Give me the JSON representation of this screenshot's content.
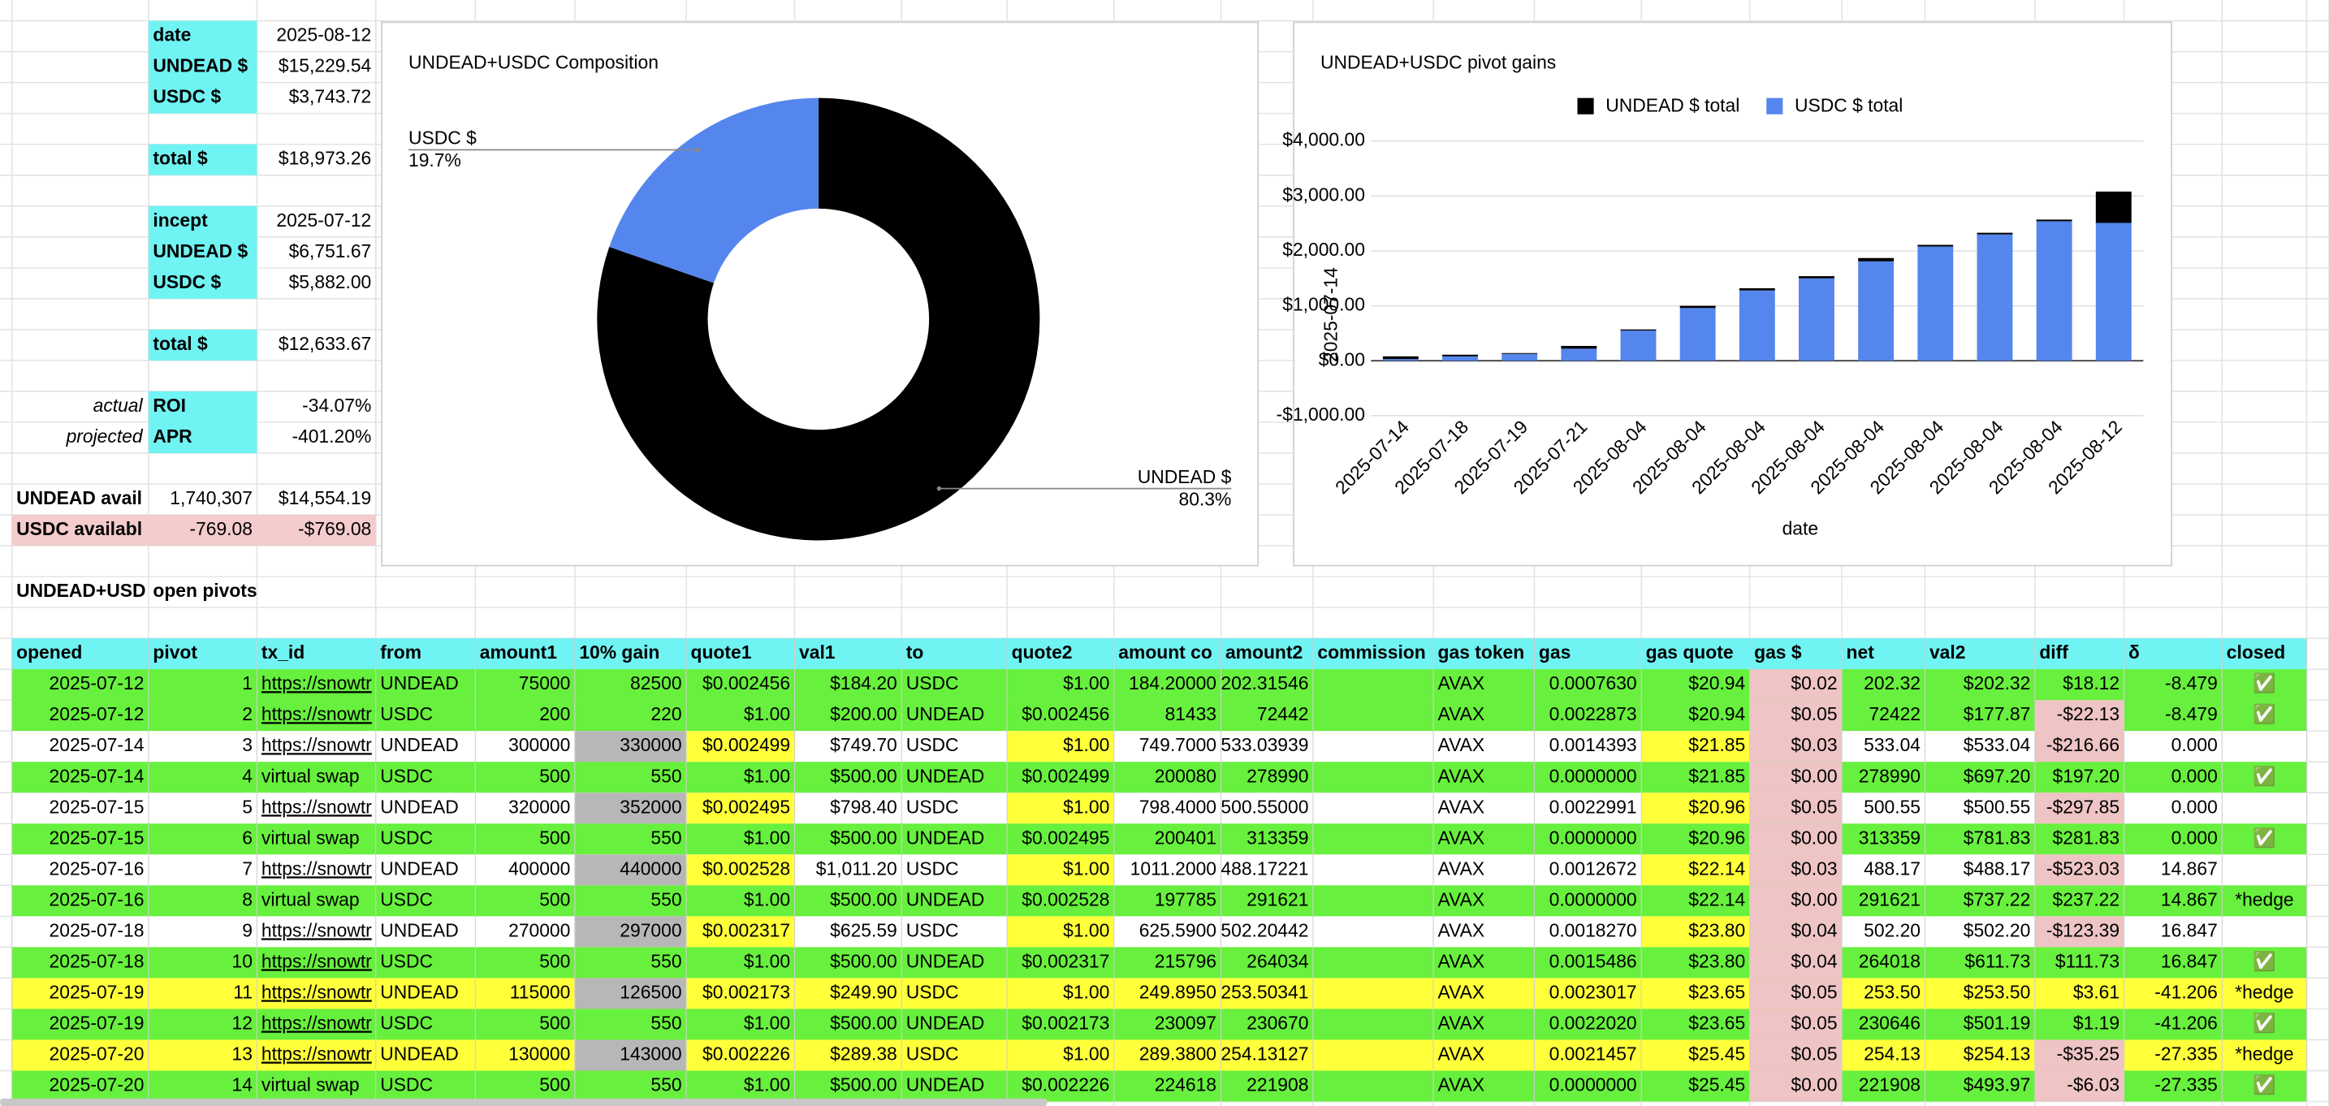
{
  "summary": [
    {
      "label": "date",
      "value": "2025-08-12"
    },
    {
      "label": "UNDEAD $",
      "value": "$15,229.54"
    },
    {
      "label": "USDC $",
      "value": "$3,743.72"
    },
    {
      "label": "total $",
      "value": "$18,973.26"
    },
    {
      "label": "incept",
      "value": "2025-07-12"
    },
    {
      "label": "UNDEAD $",
      "value": "$6,751.67"
    },
    {
      "label": "USDC $",
      "value": "$5,882.00"
    },
    {
      "label": "total $",
      "value": "$12,633.67"
    },
    {
      "note": "actual",
      "label": "ROI",
      "value": "-34.07%"
    },
    {
      "note": "projected",
      "label": "APR",
      "value": "-401.20%"
    },
    {
      "label": "UNDEAD avail",
      "amount": "1,740,307",
      "value": "$14,554.19"
    },
    {
      "label": "USDC availabl",
      "amount": "-769.08",
      "value": "-$769.08",
      "color": "#f4cccc"
    }
  ],
  "chart_data": [
    {
      "type": "pie",
      "title": "UNDEAD+USDC Composition",
      "categories": [
        "UNDEAD $",
        "USDC $"
      ],
      "values": [
        80.3,
        19.7
      ],
      "value_labels": [
        "80.3%",
        "19.7%"
      ],
      "colors": [
        "#000000",
        "#5586ee"
      ],
      "hole": 0.5
    },
    {
      "type": "stacked_bar",
      "title": "UNDEAD+USDC pivot gains",
      "x_label": "date",
      "y_label": "2025-07-14",
      "categories": [
        "2025-07-14",
        "2025-07-18",
        "2025-07-19",
        "2025-07-21",
        "2025-08-04",
        "2025-08-04",
        "2025-08-04",
        "2025-08-04",
        "2025-08-04",
        "2025-08-04",
        "2025-08-04",
        "2025-08-04",
        "2025-08-12"
      ],
      "series": [
        {
          "name": "UNDEAD $ total",
          "color": "#000000",
          "values": [
            50,
            30,
            15,
            50,
            20,
            40,
            40,
            40,
            60,
            30,
            30,
            30,
            570
          ]
        },
        {
          "name": "USDC $ total",
          "color": "#5586ee",
          "values": [
            30,
            80,
            125,
            220,
            550,
            960,
            1280,
            1500,
            1810,
            2080,
            2300,
            2540,
            2510
          ]
        }
      ],
      "ylim": [
        -1000,
        4000
      ],
      "yticks": [
        {
          "value": -1000,
          "label": "-$1,000.00"
        },
        {
          "value": 0,
          "label": "$0.00"
        },
        {
          "value": 1000,
          "label": "$1,000.00"
        },
        {
          "value": 2000,
          "label": "$2,000.00"
        },
        {
          "value": 3000,
          "label": "$3,000.00"
        },
        {
          "value": 4000,
          "label": "$4,000.00"
        }
      ],
      "grid": true,
      "legend": "top"
    }
  ],
  "pivots_title": [
    "UNDEAD+USD",
    "open pivots"
  ],
  "table": {
    "header": [
      "opened",
      "pivot",
      "tx_id",
      "from",
      "amount1",
      "10% gain",
      "quote1",
      "val1",
      "to",
      "quote2",
      "amount co",
      "amount2",
      "commission",
      "gas token",
      "gas",
      "gas quote",
      "gas $",
      "net",
      "val2",
      "diff",
      "δ",
      "closed"
    ],
    "rows": [
      [
        "2025-07-12",
        "1",
        "https://snowtr",
        "UNDEAD",
        "75000",
        "82500",
        "$0.002456",
        "$184.20",
        "USDC",
        "$1.00",
        "184.20000",
        "202.31546",
        null,
        "AVAX",
        "0.0007630",
        "$20.94",
        "$0.02",
        "202.32",
        "$202.32",
        "$18.12",
        "-8.479",
        "✅"
      ],
      [
        "2025-07-12",
        "2",
        "https://snowtr",
        "USDC",
        "200",
        "220",
        "$1.00",
        "$200.00",
        "UNDEAD",
        "$0.002456",
        "81433",
        "72442",
        null,
        "AVAX",
        "0.0022873",
        "$20.94",
        "$0.05",
        "72422",
        "$177.87",
        "-$22.13",
        "-8.479",
        "✅"
      ],
      [
        "2025-07-14",
        "3",
        "https://snowtr",
        "UNDEAD",
        "300000",
        "330000",
        "$0.002499",
        "$749.70",
        "USDC",
        "$1.00",
        "749.7000",
        "533.03939",
        null,
        "AVAX",
        "0.0014393",
        "$21.85",
        "$0.03",
        "533.04",
        "$533.04",
        "-$216.66",
        "0.000",
        null
      ],
      [
        "2025-07-14",
        "4",
        "virtual swap",
        "USDC",
        "500",
        "550",
        "$1.00",
        "$500.00",
        "UNDEAD",
        "$0.002499",
        "200080",
        "278990",
        null,
        "AVAX",
        "0.0000000",
        "$21.85",
        "$0.00",
        "278990",
        "$697.20",
        "$197.20",
        "0.000",
        "✅"
      ],
      [
        "2025-07-15",
        "5",
        "https://snowtr",
        "UNDEAD",
        "320000",
        "352000",
        "$0.002495",
        "$798.40",
        "USDC",
        "$1.00",
        "798.4000",
        "500.55000",
        null,
        "AVAX",
        "0.0022991",
        "$20.96",
        "$0.05",
        "500.55",
        "$500.55",
        "-$297.85",
        "0.000",
        null
      ],
      [
        "2025-07-15",
        "6",
        "virtual swap",
        "USDC",
        "500",
        "550",
        "$1.00",
        "$500.00",
        "UNDEAD",
        "$0.002495",
        "200401",
        "313359",
        null,
        "AVAX",
        "0.0000000",
        "$20.96",
        "$0.00",
        "313359",
        "$781.83",
        "$281.83",
        "0.000",
        "✅"
      ],
      [
        "2025-07-16",
        "7",
        "https://snowtr",
        "UNDEAD",
        "400000",
        "440000",
        "$0.002528",
        "$1,011.20",
        "USDC",
        "$1.00",
        "1011.2000",
        "488.17221",
        null,
        "AVAX",
        "0.0012672",
        "$22.14",
        "$0.03",
        "488.17",
        "$488.17",
        "-$523.03",
        "14.867",
        null
      ],
      [
        "2025-07-16",
        "8",
        "virtual swap",
        "USDC",
        "500",
        "550",
        "$1.00",
        "$500.00",
        "UNDEAD",
        "$0.002528",
        "197785",
        "291621",
        null,
        "AVAX",
        "0.0000000",
        "$22.14",
        "$0.00",
        "291621",
        "$737.22",
        "$237.22",
        "14.867",
        "*hedge"
      ],
      [
        "2025-07-18",
        "9",
        "https://snowtr",
        "UNDEAD",
        "270000",
        "297000",
        "$0.002317",
        "$625.59",
        "USDC",
        "$1.00",
        "625.5900",
        "502.20442",
        null,
        "AVAX",
        "0.0018270",
        "$23.80",
        "$0.04",
        "502.20",
        "$502.20",
        "-$123.39",
        "16.847",
        null
      ],
      [
        "2025-07-18",
        "10",
        "https://snowtr",
        "USDC",
        "500",
        "550",
        "$1.00",
        "$500.00",
        "UNDEAD",
        "$0.002317",
        "215796",
        "264034",
        null,
        "AVAX",
        "0.0015486",
        "$23.80",
        "$0.04",
        "264018",
        "$611.73",
        "$111.73",
        "16.847",
        "✅"
      ],
      [
        "2025-07-19",
        "11",
        "https://snowtr",
        "UNDEAD",
        "115000",
        "126500",
        "$0.002173",
        "$249.90",
        "USDC",
        "$1.00",
        "249.8950",
        "253.50341",
        null,
        "AVAX",
        "0.0023017",
        "$23.65",
        "$0.05",
        "253.50",
        "$253.50",
        "$3.61",
        "-41.206",
        "*hedge"
      ],
      [
        "2025-07-19",
        "12",
        "https://snowtr",
        "USDC",
        "500",
        "550",
        "$1.00",
        "$500.00",
        "UNDEAD",
        "$0.002173",
        "230097",
        "230670",
        null,
        "AVAX",
        "0.0022020",
        "$23.65",
        "$0.05",
        "230646",
        "$501.19",
        "$1.19",
        "-41.206",
        "✅"
      ],
      [
        "2025-07-20",
        "13",
        "https://snowtr",
        "UNDEAD",
        "130000",
        "143000",
        "$0.002226",
        "$289.38",
        "USDC",
        "$1.00",
        "289.3800",
        "254.13127",
        null,
        "AVAX",
        "0.0021457",
        "$25.45",
        "$0.05",
        "254.13",
        "$254.13",
        "-$35.25",
        "-27.335",
        "*hedge"
      ],
      [
        "2025-07-20",
        "14",
        "virtual swap",
        "USDC",
        "500",
        "550",
        "$1.00",
        "$500.00",
        "UNDEAD",
        "$0.002226",
        "224618",
        "221908",
        null,
        "AVAX",
        "0.0000000",
        "$25.45",
        "$0.00",
        "221908",
        "$493.97",
        "-$6.03",
        "-27.335",
        "✅"
      ]
    ],
    "row_colors": [
      "#67f03d",
      "#67f03d",
      "#ffffff",
      "#67f03d",
      "#ffffff",
      "#67f03d",
      "#ffffff",
      "#67f03d",
      "#ffffff",
      "#67f03d",
      "#ffff3a",
      "#67f03d",
      "#ffff3a",
      "#67f03d"
    ]
  }
}
